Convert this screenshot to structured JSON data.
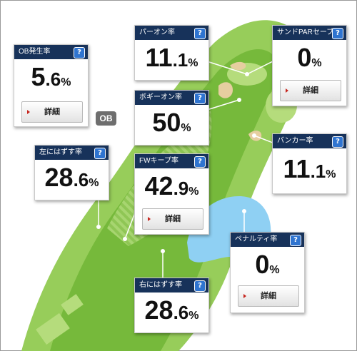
{
  "ob_label": "OB",
  "detail_label": "詳細",
  "help_symbol": "?",
  "help_icon": "question-mark-icon",
  "colors": {
    "header_bg": "#17325a",
    "help_bg": "#2f74d0",
    "fairway": "#74b83a",
    "rough": "#97cd5a",
    "water": "#8fd0f3",
    "bunker": "#e6cea0",
    "detail_arrow": "#c6251e"
  },
  "cards": {
    "ob": {
      "title": "OB発生率",
      "int": "5",
      "dec": ".6",
      "pct": "%"
    },
    "par_on": {
      "title": "パーオン率",
      "int": "11",
      "dec": ".1",
      "pct": "%"
    },
    "sand": {
      "title": "サンドPARセーブ率",
      "int": "0",
      "dec": "",
      "pct": "%"
    },
    "bogey": {
      "title": "ボギーオン率",
      "int": "50",
      "dec": "",
      "pct": "%"
    },
    "left": {
      "title": "左にはずす率",
      "int": "28",
      "dec": ".6",
      "pct": "%"
    },
    "fw": {
      "title": "FWキープ率",
      "int": "42",
      "dec": ".9",
      "pct": "%"
    },
    "bunker": {
      "title": "バンカー率",
      "int": "11",
      "dec": ".1",
      "pct": "%"
    },
    "penalty": {
      "title": "ペナルティ率",
      "int": "0",
      "dec": "",
      "pct": "%"
    },
    "right": {
      "title": "右にはずす率",
      "int": "28",
      "dec": ".6",
      "pct": "%"
    }
  }
}
